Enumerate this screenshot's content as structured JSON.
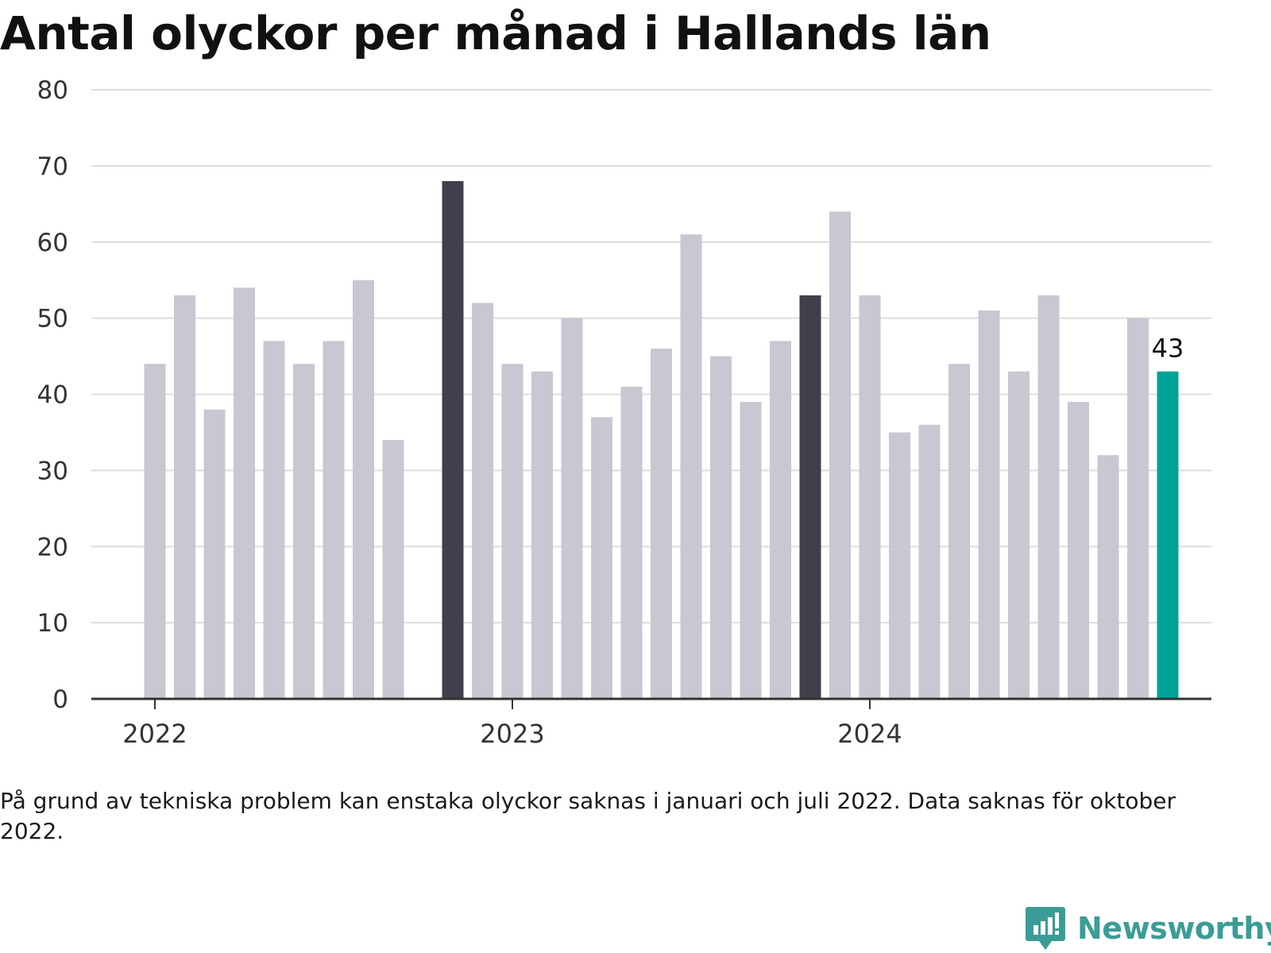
{
  "title": "Antal olyckor per månad i Hallands län",
  "note": "På grund av tekniska problem kan enstaka olyckor saknas i januari och juli 2022. Data saknas för oktober 2022.",
  "brand": {
    "name": "Newsworthy",
    "icon": "bar-chart-speech-bubble-icon"
  },
  "colors": {
    "default": "#c8c7d2",
    "highlight": "#403f4c",
    "latest": "#00a398",
    "grid": "#dddddd",
    "axis": "#333333",
    "brand": "#3b9c96"
  },
  "chart_data": {
    "type": "bar",
    "title": "Antal olyckor per månad i Hallands län",
    "xlabel": "",
    "ylabel": "",
    "ylim": [
      0,
      80
    ],
    "yticks": [
      0,
      10,
      20,
      30,
      40,
      50,
      60,
      70,
      80
    ],
    "grid": true,
    "xticks": [
      {
        "label": "2022",
        "at": "2022-01"
      },
      {
        "label": "2023",
        "at": "2023-01"
      },
      {
        "label": "2024",
        "at": "2024-01"
      }
    ],
    "categories": [
      "2022-01",
      "2022-02",
      "2022-03",
      "2022-04",
      "2022-05",
      "2022-06",
      "2022-07",
      "2022-08",
      "2022-09",
      "2022-10",
      "2022-11",
      "2022-12",
      "2023-01",
      "2023-02",
      "2023-03",
      "2023-04",
      "2023-05",
      "2023-06",
      "2023-07",
      "2023-08",
      "2023-09",
      "2023-10",
      "2023-11",
      "2023-12",
      "2024-01",
      "2024-02",
      "2024-03",
      "2024-04",
      "2024-05",
      "2024-06",
      "2024-07",
      "2024-08",
      "2024-09",
      "2024-10",
      "2024-11"
    ],
    "values": [
      44,
      53,
      38,
      54,
      47,
      44,
      47,
      55,
      34,
      null,
      68,
      52,
      44,
      43,
      50,
      37,
      41,
      46,
      61,
      45,
      39,
      47,
      53,
      64,
      53,
      35,
      36,
      44,
      51,
      43,
      53,
      39,
      32,
      50,
      43
    ],
    "highlight": [
      "2022-11",
      "2023-11"
    ],
    "latest": "2024-11",
    "data_labels": [
      {
        "category": "2024-11",
        "text": "43"
      }
    ]
  }
}
